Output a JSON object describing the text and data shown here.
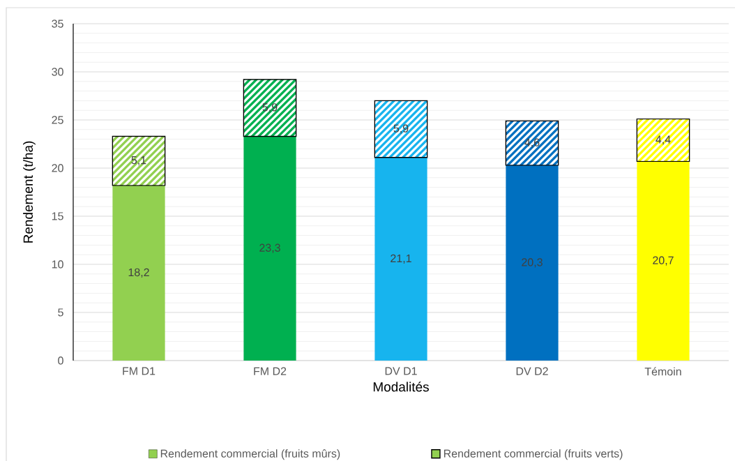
{
  "chart_data": {
    "type": "bar",
    "stacked": true,
    "xlabel": "Modalités",
    "ylabel": "Rendement (t/ha)",
    "categories": [
      "FM D1",
      "FM D2",
      "DV D1",
      "DV D2",
      "Témoin"
    ],
    "series": [
      {
        "name": "Rendement commercial (fruits mûrs)",
        "colors": [
          "#92d050",
          "#00b050",
          "#17b4ee",
          "#0070c0",
          "#ffff00"
        ],
        "values": [
          18.2,
          23.3,
          21.1,
          20.3,
          20.7
        ],
        "value_labels": [
          "18,2",
          "23,3",
          "21,1",
          "20,3",
          "20,7"
        ]
      },
      {
        "name": "Rendement commercial (fruits verts)",
        "colors": [
          "#92d050",
          "#00b050",
          "#17b4ee",
          "#0070c0",
          "#ffff00"
        ],
        "values": [
          5.1,
          5.9,
          5.9,
          4.6,
          4.4
        ],
        "value_labels": [
          "5,1",
          "5,9",
          "5,9",
          "4,6",
          "4,4"
        ]
      }
    ],
    "ylim": [
      0,
      35
    ],
    "yticks": [
      0,
      5,
      10,
      15,
      20,
      25,
      30,
      35
    ],
    "grid": "y",
    "legend": "bottom"
  }
}
